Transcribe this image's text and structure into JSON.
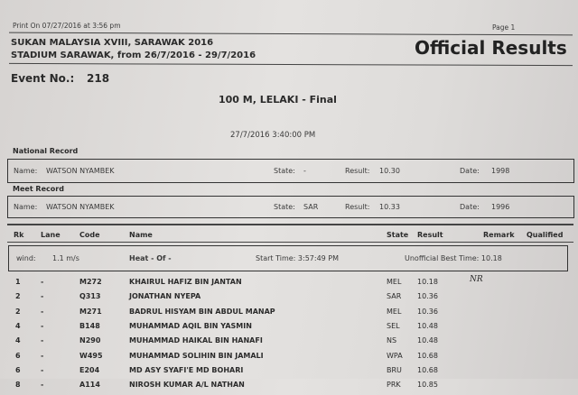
{
  "header": {
    "print_on": "Print On 07/27/2016 at  3:56 pm",
    "page": "Page  1",
    "meet_name": "SUKAN MALAYSIA XVIII, SARAWAK 2016",
    "venue": "STADIUM SARAWAK, from 26/7/2016 - 29/7/2016",
    "doc_title": "Official Results"
  },
  "event": {
    "label": "Event No.:",
    "number": "218",
    "title": "100 M, LELAKI - Final",
    "datetime": "27/7/2016 3:40:00 PM"
  },
  "records": [
    {
      "heading": "National Record",
      "name_label": "Name:",
      "name": "WATSON NYAMBEK",
      "state_label": "State:",
      "state": "-",
      "result_label": "Result:",
      "result": "10.30",
      "date_label": "Date:",
      "date": "1998"
    },
    {
      "heading": "Meet Record",
      "name_label": "Name:",
      "name": "WATSON NYAMBEK",
      "state_label": "State:",
      "state": "SAR",
      "result_label": "Result:",
      "result": "10.33",
      "date_label": "Date:",
      "date": "1996"
    }
  ],
  "columns": [
    "Rk",
    "Lane",
    "Code",
    "Name",
    "State",
    "Result",
    "Remark",
    "Qualified"
  ],
  "heat": {
    "wind_label": "wind:",
    "wind": "1.1 m/s",
    "heat": "Heat  -  Of -",
    "start_time": "Start Time: 3:57:49 PM",
    "best_time": "Unofficial Best Time:  10.18"
  },
  "results": [
    {
      "rk": "1",
      "lane": "-",
      "code": "M272",
      "name": "KHAIRUL HAFIZ BIN JANTAN",
      "state": "MEL",
      "result": "10.18",
      "remark": "NR"
    },
    {
      "rk": "2",
      "lane": "-",
      "code": "Q313",
      "name": "JONATHAN NYEPA",
      "state": "SAR",
      "result": "10.36",
      "remark": ""
    },
    {
      "rk": "2",
      "lane": "-",
      "code": "M271",
      "name": "BADRUL HISYAM BIN ABDUL MANAP",
      "state": "MEL",
      "result": "10.36",
      "remark": ""
    },
    {
      "rk": "4",
      "lane": "-",
      "code": "B148",
      "name": "MUHAMMAD AQIL BIN YASMIN",
      "state": "SEL",
      "result": "10.48",
      "remark": ""
    },
    {
      "rk": "4",
      "lane": "-",
      "code": "N290",
      "name": "MUHAMMAD HAIKAL BIN HANAFI",
      "state": "NS",
      "result": "10.48",
      "remark": ""
    },
    {
      "rk": "6",
      "lane": "-",
      "code": "W495",
      "name": "MUHAMMAD SOLIHIN BIN JAMALI",
      "state": "WPA",
      "result": "10.68",
      "remark": ""
    },
    {
      "rk": "6",
      "lane": "-",
      "code": "E204",
      "name": "MD ASY SYAFI'E MD BOHARI",
      "state": "BRU",
      "result": "10.68",
      "remark": ""
    },
    {
      "rk": "8",
      "lane": "-",
      "code": "A114",
      "name": "NIROSH KUMAR A/L NATHAN",
      "state": "PRK",
      "result": "10.85",
      "remark": ""
    }
  ]
}
